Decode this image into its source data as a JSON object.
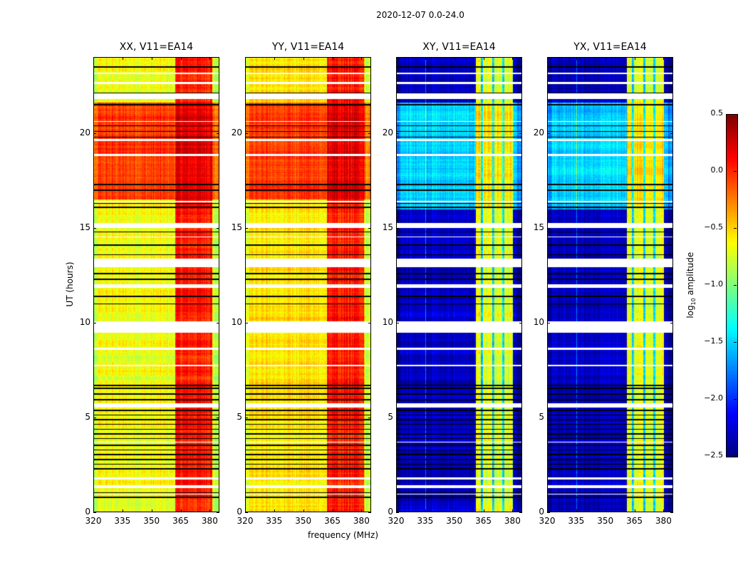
{
  "chart_data": {
    "type": "heatmap",
    "title": "2020-12-07 0.0-24.0",
    "xlabel": "frequency (MHz)",
    "ylabel": "UT (hours)",
    "xlim": [
      320,
      385
    ],
    "ylim": [
      0,
      24
    ],
    "xticks": [
      320,
      335,
      350,
      365,
      380
    ],
    "yticks": [
      0,
      5,
      10,
      15,
      20
    ],
    "colorbar": {
      "label_prefix": "log",
      "label_sub": "10",
      "label_suffix": " amplitude",
      "colormap": "jet",
      "range": [
        -2.5,
        0.5
      ],
      "ticks": [
        "0.5",
        "0.0",
        "−0.5",
        "−1.0",
        "−1.5",
        "−2.0",
        "−2.5"
      ],
      "tick_values": [
        0.5,
        0.0,
        -0.5,
        -1.0,
        -1.5,
        -2.0,
        -2.5
      ]
    },
    "flagged_hours": [
      [
        0.95,
        1.0
      ],
      [
        1.3,
        1.45
      ],
      [
        1.75,
        1.85
      ],
      [
        3.7,
        3.75
      ],
      [
        5.55,
        5.75
      ],
      [
        7.7,
        7.8
      ],
      [
        8.6,
        8.7
      ],
      [
        9.5,
        10.1
      ],
      [
        11.85,
        12.05
      ],
      [
        12.95,
        13.4
      ],
      [
        14.5,
        14.55
      ],
      [
        15.0,
        15.25
      ],
      [
        16.35,
        16.45
      ],
      [
        18.8,
        18.9
      ],
      [
        19.6,
        19.7
      ],
      [
        20.6,
        20.65
      ],
      [
        21.8,
        22.1
      ],
      [
        22.6,
        22.7
      ],
      [
        23.1,
        23.2
      ]
    ],
    "dark_rows_hours": [
      0.8,
      1.05,
      2.3,
      2.55,
      2.8,
      3.05,
      3.3,
      3.55,
      3.9,
      4.15,
      4.4,
      4.65,
      4.9,
      5.15,
      5.4,
      5.95,
      6.25,
      6.55,
      6.7,
      11.0,
      11.4,
      12.3,
      12.6,
      13.6,
      14.1,
      14.8,
      16.1,
      16.3,
      17.0,
      17.3,
      19.8,
      20.1,
      20.4,
      21.5,
      22.1,
      23.5
    ],
    "panels": [
      {
        "title": "XX, V11=EA14",
        "base": -0.65,
        "band": [
          362,
          381
        ],
        "band_level": 0.05,
        "active_hours": [
          [
            16.5,
            21.6
          ]
        ],
        "active_level": -0.05,
        "stripes": []
      },
      {
        "title": "YY, V11=EA14",
        "base": -0.55,
        "band": [
          362,
          381
        ],
        "band_level": 0.05,
        "active_hours": [
          [
            16.5,
            21.6
          ]
        ],
        "active_level": -0.05,
        "stripes": []
      },
      {
        "title": "XY, V11=EA14",
        "base": -2.3,
        "band": [
          361,
          380
        ],
        "band_level": -0.7,
        "active_hours": [
          [
            16.0,
            21.6
          ]
        ],
        "active_level": -1.5,
        "stripes": [
          335,
          364,
          370,
          375
        ]
      },
      {
        "title": "YX, V11=EA14",
        "base": -2.3,
        "band": [
          361,
          380
        ],
        "band_level": -0.7,
        "active_hours": [
          [
            16.0,
            21.6
          ]
        ],
        "active_level": -1.5,
        "stripes": [
          335,
          364,
          370,
          375
        ]
      }
    ]
  }
}
